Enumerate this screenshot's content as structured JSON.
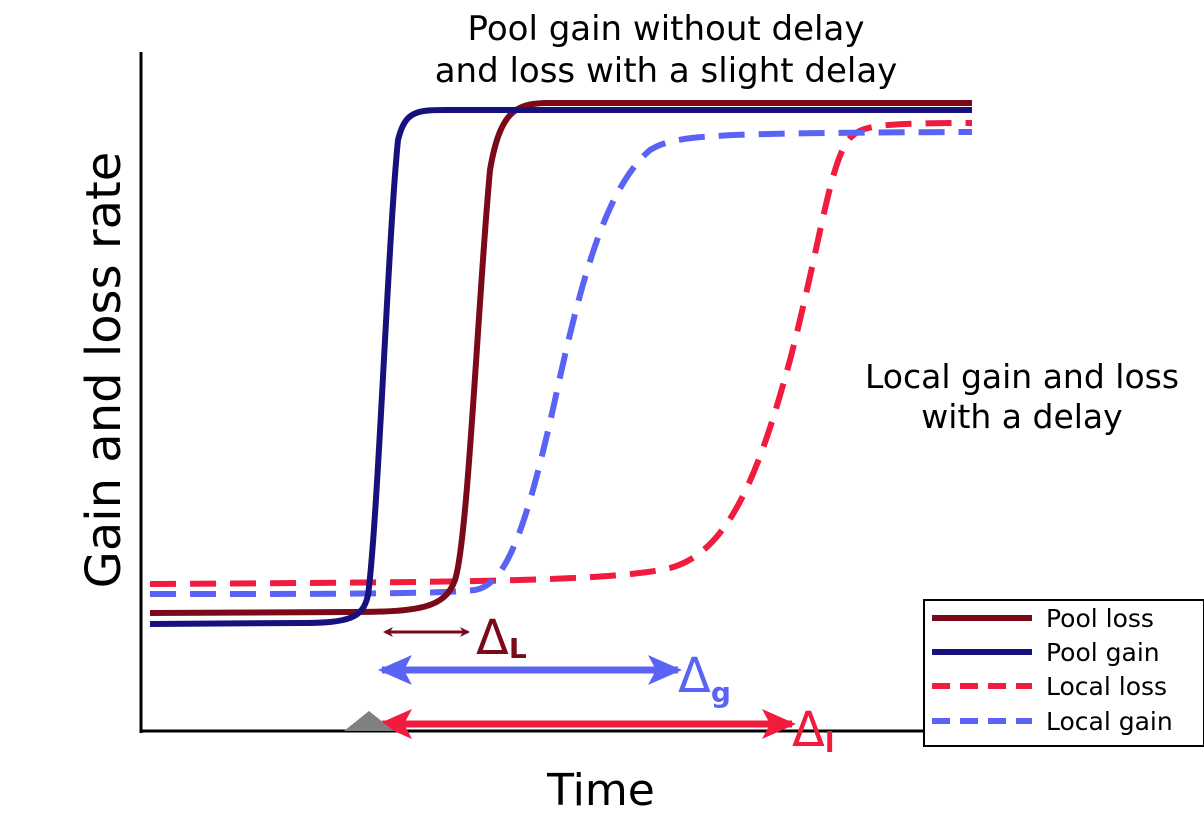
{
  "title_lines": [
    "Pool gain without delay",
    "and loss with a slight delay"
  ],
  "annotation_lines": [
    "Local gain and loss",
    "with a delay"
  ],
  "x_axis_label": "Time",
  "y_axis_label": "Gain and loss rate",
  "deltas": {
    "loss": {
      "symbol": "Δ",
      "subscript": "L"
    },
    "gain": {
      "symbol": "Δ",
      "subscript": "g"
    },
    "local": {
      "symbol": "Δ",
      "subscript": "l"
    }
  },
  "legend": [
    {
      "label": "Pool loss",
      "color": "#7a0a1a",
      "style": "solid"
    },
    {
      "label": "Pool gain",
      "color": "#17117d",
      "style": "solid"
    },
    {
      "label": "Local loss",
      "color": "#f01b3d",
      "style": "dashed"
    },
    {
      "label": "Local gain",
      "color": "#5b63f5",
      "style": "dashed"
    }
  ],
  "colors": {
    "pool_loss": "#7a0a1a",
    "pool_gain": "#17117d",
    "local_loss": "#f01b3d",
    "local_gain": "#5b63f5",
    "marker": "#808080"
  }
}
